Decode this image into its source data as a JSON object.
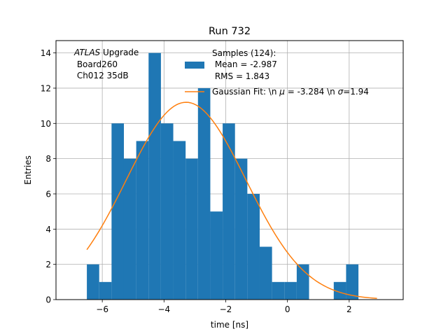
{
  "chart_data": {
    "type": "bar",
    "title": "Run 732",
    "xlabel": "time [ns]",
    "ylabel": "Entries",
    "xlim": [
      -7.5,
      3.75
    ],
    "ylim": [
      0,
      14.7
    ],
    "x_ticks": [
      -6,
      -4,
      -2,
      0,
      2
    ],
    "x_tick_labels": [
      "−6",
      "−4",
      "−2",
      "0",
      "2"
    ],
    "y_ticks": [
      0,
      2,
      4,
      6,
      8,
      10,
      12,
      14
    ],
    "y_tick_labels": [
      "0",
      "2",
      "4",
      "6",
      "8",
      "10",
      "12",
      "14"
    ],
    "grid": true,
    "bin_start": -6.5,
    "bin_width": 0.4,
    "values": [
      2,
      1,
      10,
      8,
      9,
      14,
      10,
      9,
      8,
      12,
      5,
      10,
      8,
      6,
      3,
      1,
      1,
      2,
      0,
      0,
      1,
      2
    ],
    "fit": {
      "name": "Gaussian Fit",
      "mu": -3.284,
      "sigma": 1.94,
      "amplitude": 11.2,
      "x_range": [
        -6.5,
        2.9
      ]
    },
    "colors": {
      "bars": "#1f77b4",
      "fit": "#ff7f0e",
      "grid": "#b0b0b0"
    }
  },
  "annotation": {
    "italic": "ATLAS",
    "line1_rest": " Upgrade",
    "line2": " Board260",
    "line3": " Ch012 35dB"
  },
  "legend": {
    "hist_line1": "Samples (124):",
    "hist_line2": " Mean = -2.987",
    "hist_line3": " RMS = 1.843",
    "fit_prefix": "Gaussian Fit: \\n ",
    "fit_mu_symbol": "μ",
    "fit_mid": " = -3.284 \\n ",
    "fit_sigma_symbol": "σ",
    "fit_suffix": "=1.94"
  }
}
